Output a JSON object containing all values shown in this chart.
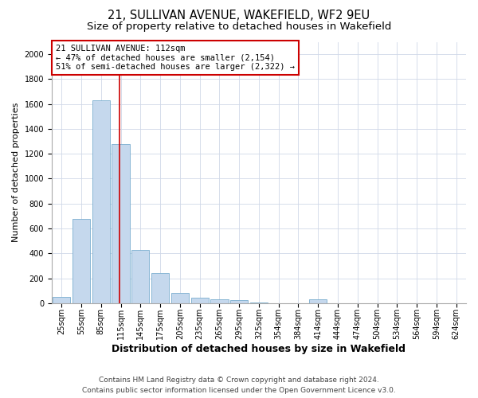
{
  "title_line1": "21, SULLIVAN AVENUE, WAKEFIELD, WF2 9EU",
  "title_line2": "Size of property relative to detached houses in Wakefield",
  "xlabel": "Distribution of detached houses by size in Wakefield",
  "ylabel": "Number of detached properties",
  "categories": [
    "25sqm",
    "55sqm",
    "85sqm",
    "115sqm",
    "145sqm",
    "175sqm",
    "205sqm",
    "235sqm",
    "265sqm",
    "295sqm",
    "325sqm",
    "354sqm",
    "384sqm",
    "414sqm",
    "444sqm",
    "474sqm",
    "504sqm",
    "534sqm",
    "564sqm",
    "594sqm",
    "624sqm"
  ],
  "values": [
    50,
    680,
    1630,
    1280,
    430,
    245,
    80,
    45,
    30,
    25,
    5,
    0,
    0,
    30,
    0,
    0,
    0,
    0,
    0,
    0,
    0
  ],
  "bar_color": "#c5d8ed",
  "bar_edge_color": "#7aadcf",
  "vline_x": 2.925,
  "vline_color": "#cc0000",
  "annotation_text": "21 SULLIVAN AVENUE: 112sqm\n← 47% of detached houses are smaller (2,154)\n51% of semi-detached houses are larger (2,322) →",
  "annotation_box_color": "#ffffff",
  "annotation_box_edge_color": "#cc0000",
  "ylim": [
    0,
    2100
  ],
  "yticks": [
    0,
    200,
    400,
    600,
    800,
    1000,
    1200,
    1400,
    1600,
    1800,
    2000
  ],
  "footer_line1": "Contains HM Land Registry data © Crown copyright and database right 2024.",
  "footer_line2": "Contains public sector information licensed under the Open Government Licence v3.0.",
  "title_fontsize": 10.5,
  "subtitle_fontsize": 9.5,
  "ylabel_fontsize": 8,
  "xlabel_fontsize": 9,
  "tick_fontsize": 7,
  "annotation_fontsize": 7.5,
  "footer_fontsize": 6.5,
  "background_color": "#ffffff",
  "grid_color": "#d0d8e8"
}
